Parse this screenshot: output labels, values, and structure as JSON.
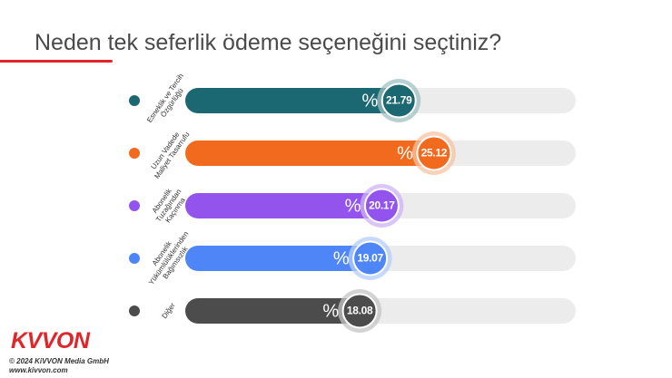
{
  "title": "Neden tek seferlik ödeme seçeneğini seçtiniz?",
  "footer": {
    "logo": "KVVON",
    "copyright": "© 2024 KiVVON Media GmbH",
    "website": "www.kivvon.com"
  },
  "chart_data": {
    "type": "bar",
    "orientation": "horizontal",
    "categories": [
      [
        "Esneklik ve Tercih",
        "Özgürlüğü"
      ],
      [
        "Uzun Vadede",
        "Maliyet Tasarrufu"
      ],
      [
        "Abonelik",
        "Tuzağından",
        "Kaçınma"
      ],
      [
        "Abonelik",
        "Yükümlülüklerinden",
        "Bağımsızlık"
      ],
      [
        "Diğer"
      ]
    ],
    "values": [
      21.79,
      25.12,
      20.17,
      19.07,
      18.08
    ],
    "value_prefix": "%",
    "colors": [
      "#1c6872",
      "#f26a1d",
      "#9354ee",
      "#4f86f7",
      "#4c4c4c"
    ],
    "halo_colors": [
      "#9fc0c3",
      "#f8c3a2",
      "#cdb3f7",
      "#b6cdfb",
      "#c4c4c4"
    ],
    "track_color": "#ececec",
    "xlim": [
      0,
      37
    ],
    "grid": false,
    "legend": "none"
  }
}
